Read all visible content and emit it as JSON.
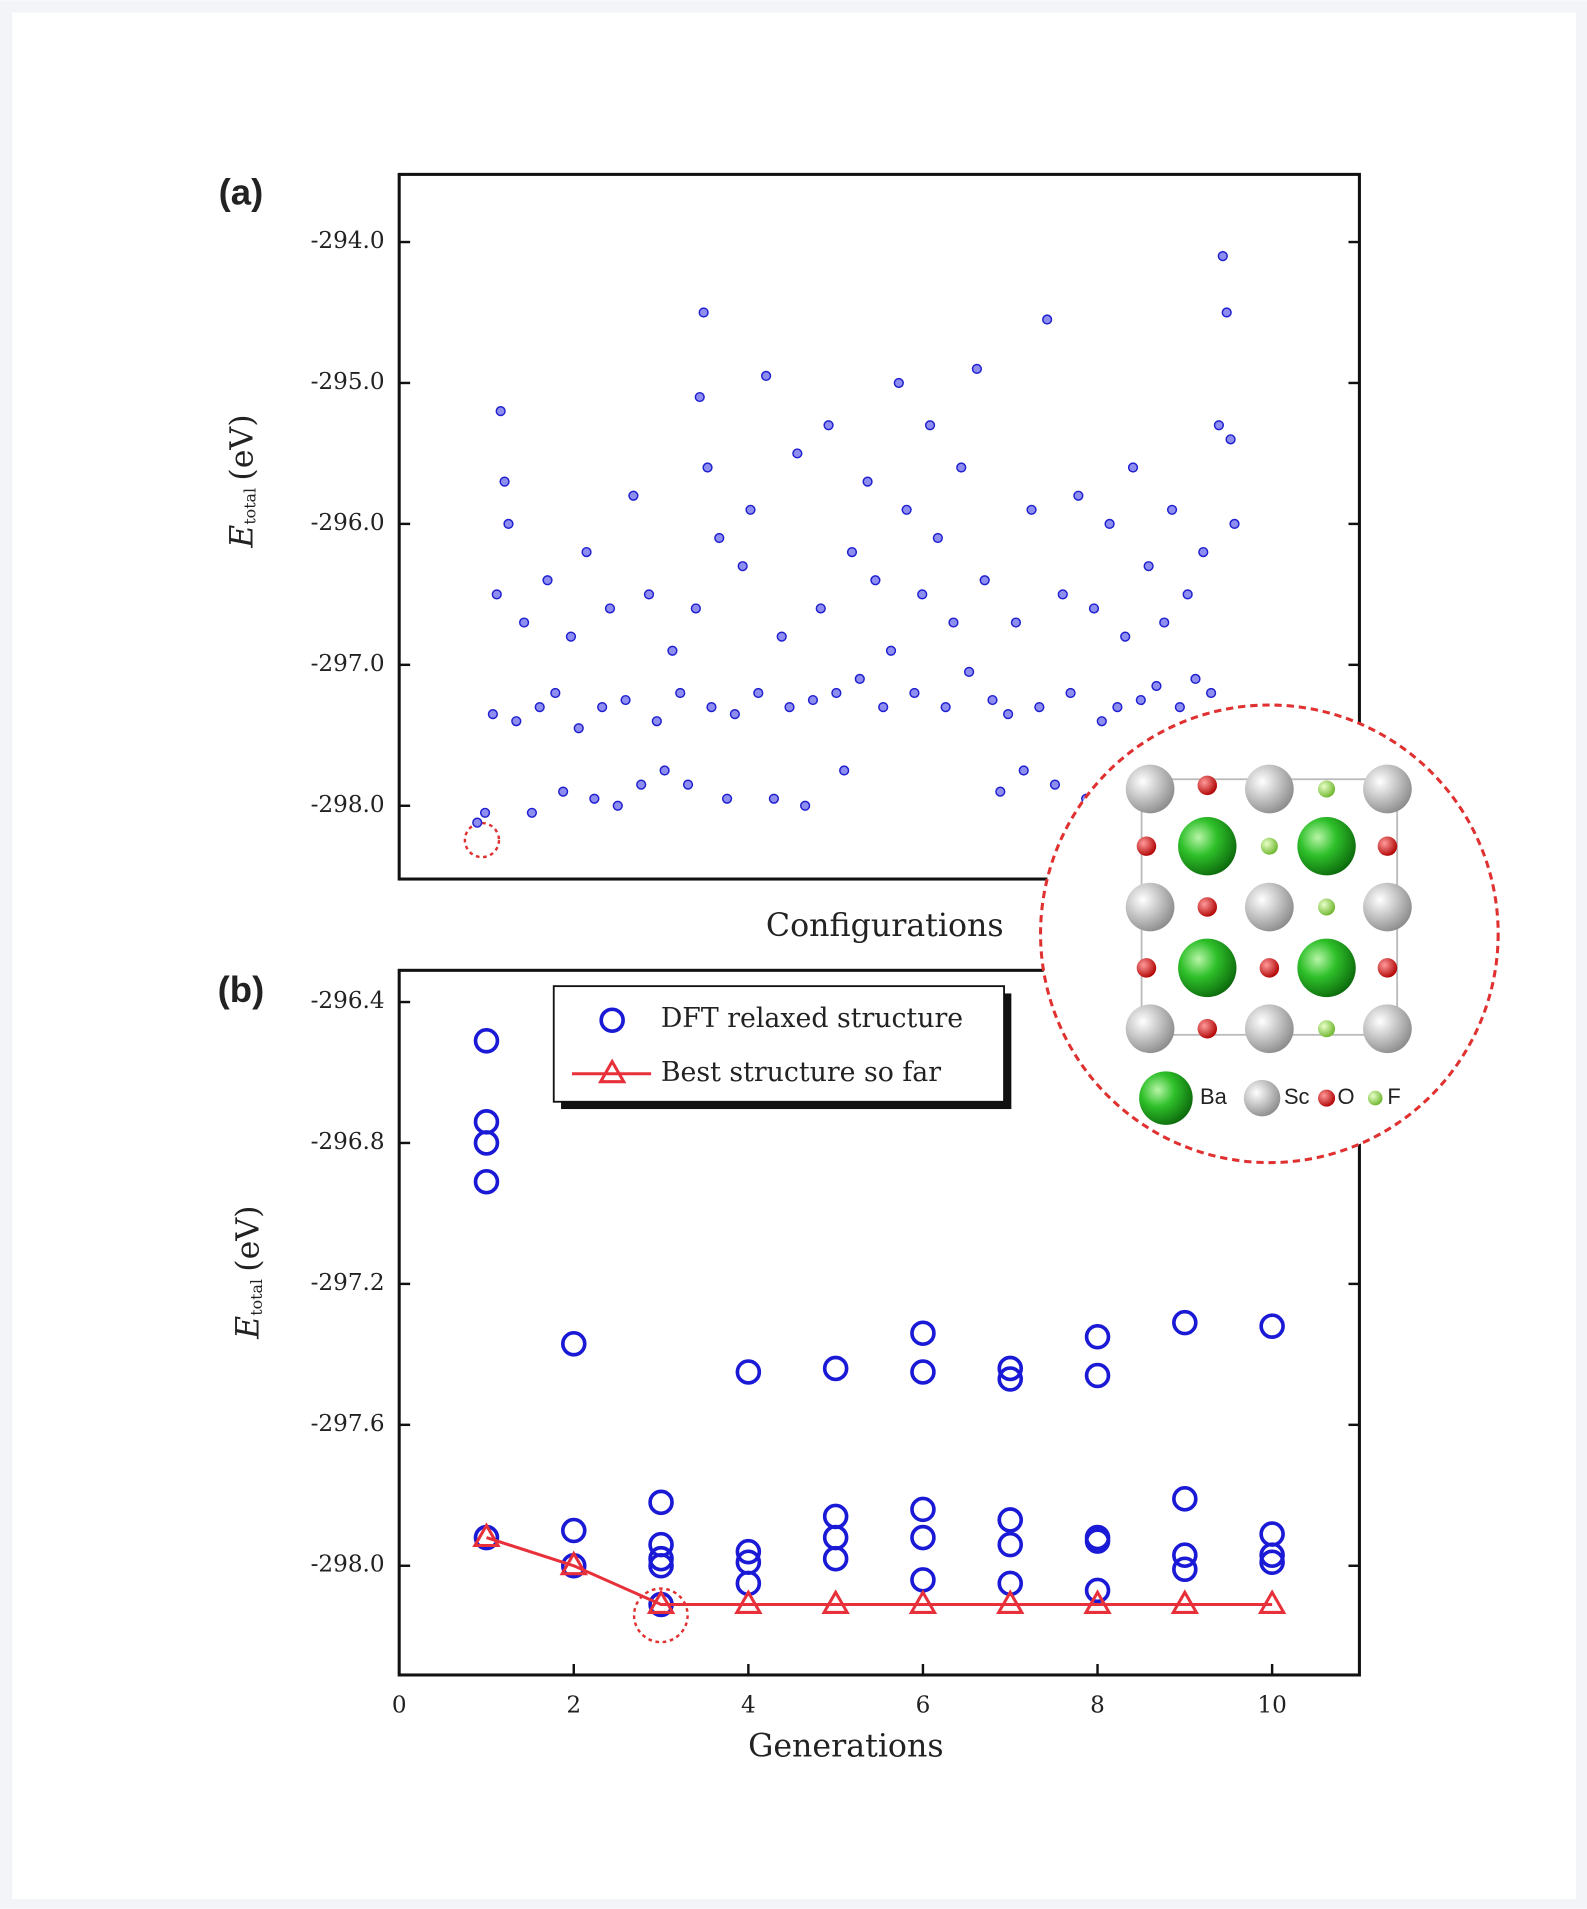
{
  "chart_data": [
    {
      "type": "scatter",
      "label": "(a)",
      "xlabel": "Configurations",
      "ylabel": "E",
      "ylabel_subscript": "total",
      "ylabel_unit": "(eV)",
      "xlim": [
        -100,
        1130
      ],
      "ylim": [
        -298.52,
        -293.52
      ],
      "yticks": [
        {
          "value": -294,
          "label": "-294.0"
        },
        {
          "value": -295,
          "label": "-295.0"
        },
        {
          "value": -296,
          "label": "-296.0"
        },
        {
          "value": -297,
          "label": "-297.0"
        },
        {
          "value": -298,
          "label": "-298.0"
        }
      ],
      "series": [
        {
          "color": "#1f1fd0",
          "marker": "dot",
          "x": [
            0,
            10,
            20,
            25,
            30,
            35,
            40,
            50,
            60,
            70,
            80,
            90,
            100,
            110,
            120,
            130,
            140,
            150,
            160,
            170,
            180,
            190,
            200,
            210,
            220,
            230,
            240,
            250,
            260,
            270,
            280,
            285,
            290,
            295,
            300,
            310,
            320,
            330,
            340,
            350,
            360,
            370,
            380,
            390,
            400,
            410,
            420,
            430,
            440,
            450,
            460,
            470,
            480,
            490,
            500,
            510,
            520,
            530,
            540,
            550,
            560,
            570,
            580,
            590,
            600,
            610,
            620,
            630,
            640,
            650,
            660,
            670,
            680,
            690,
            700,
            710,
            720,
            730,
            740,
            750,
            760,
            770,
            780,
            790,
            800,
            810,
            820,
            830,
            840,
            850,
            860,
            870,
            880,
            890,
            900,
            910,
            920,
            930,
            940,
            950,
            955,
            960,
            965,
            970
          ],
          "values": [
            -298.12,
            -298.05,
            -297.35,
            -296.5,
            -295.2,
            -295.7,
            -296.0,
            -297.4,
            -296.7,
            -298.05,
            -297.3,
            -296.4,
            -297.2,
            -297.9,
            -296.8,
            -297.45,
            -296.2,
            -297.95,
            -297.3,
            -296.6,
            -298.0,
            -297.25,
            -295.8,
            -297.85,
            -296.5,
            -297.4,
            -297.75,
            -296.9,
            -297.2,
            -297.85,
            -296.6,
            -295.1,
            -294.5,
            -295.6,
            -297.3,
            -296.1,
            -297.95,
            -297.35,
            -296.3,
            -295.9,
            -297.2,
            -294.95,
            -297.95,
            -296.8,
            -297.3,
            -295.5,
            -298.0,
            -297.25,
            -296.6,
            -295.3,
            -297.2,
            -297.75,
            -296.2,
            -297.1,
            -295.7,
            -296.4,
            -297.3,
            -296.9,
            -295.0,
            -295.9,
            -297.2,
            -296.5,
            -295.3,
            -296.1,
            -297.3,
            -296.7,
            -295.6,
            -297.05,
            -294.9,
            -296.4,
            -297.25,
            -297.9,
            -297.35,
            -296.7,
            -297.75,
            -295.9,
            -297.3,
            -294.55,
            -297.85,
            -296.5,
            -297.2,
            -295.8,
            -297.95,
            -296.6,
            -297.4,
            -296.0,
            -297.3,
            -296.8,
            -295.6,
            -297.25,
            -296.3,
            -297.15,
            -296.7,
            -295.9,
            -297.3,
            -296.5,
            -297.1,
            -296.2,
            -297.2,
            -295.3,
            -294.1,
            -294.5,
            -295.4,
            -296.0
          ]
        }
      ]
    },
    {
      "type": "scatter",
      "label": "(b)",
      "xlabel": "Generations",
      "ylabel": "E",
      "ylabel_subscript": "total",
      "ylabel_unit": "(eV)",
      "xlim": [
        0,
        11
      ],
      "ylim": [
        -298.31,
        -296.31
      ],
      "xticks": [
        0,
        2,
        4,
        6,
        8,
        10
      ],
      "yticks": [
        -296.4,
        -296.8,
        -297.2,
        -297.6,
        {
          "value": -298,
          "label": "-298.0"
        }
      ],
      "legend": "upper center",
      "series": [
        {
          "name": "DFT relaxed structure",
          "color": "#1a1ad6",
          "marker": "circle",
          "x": [
            1,
            1,
            1,
            1,
            1,
            2,
            2,
            2,
            3,
            3,
            3,
            3,
            3,
            4,
            4,
            4,
            4,
            5,
            5,
            5,
            5,
            6,
            6,
            6,
            6,
            6,
            7,
            7,
            7,
            7,
            7,
            8,
            8,
            8,
            8,
            8,
            9,
            9,
            9,
            9,
            10,
            10,
            10,
            10
          ],
          "values": [
            -296.51,
            -296.74,
            -296.8,
            -296.91,
            -297.92,
            -297.37,
            -297.9,
            -298.0,
            -297.82,
            -297.94,
            -297.98,
            -298.0,
            -298.11,
            -297.45,
            -297.96,
            -297.99,
            -298.05,
            -297.44,
            -297.86,
            -297.92,
            -297.98,
            -297.34,
            -297.45,
            -297.84,
            -297.92,
            -298.04,
            -297.44,
            -297.47,
            -297.87,
            -297.94,
            -298.05,
            -297.35,
            -297.46,
            -297.92,
            -297.93,
            -298.07,
            -297.31,
            -297.81,
            -297.97,
            -298.01,
            -297.32,
            -297.91,
            -297.97,
            -297.99
          ]
        },
        {
          "name": "Best structure so far",
          "color": "#e8303a",
          "marker": "triangle",
          "line": true,
          "x": [
            1,
            2,
            3,
            4,
            5,
            6,
            7,
            8,
            9,
            10
          ],
          "values": [
            -297.92,
            -298.0,
            -298.11,
            -298.11,
            -298.11,
            -298.11,
            -298.11,
            -298.11,
            -298.11,
            -298.11
          ]
        }
      ]
    }
  ],
  "inset": {
    "legend": [
      "Ba",
      "Sc",
      "O",
      "F"
    ]
  }
}
